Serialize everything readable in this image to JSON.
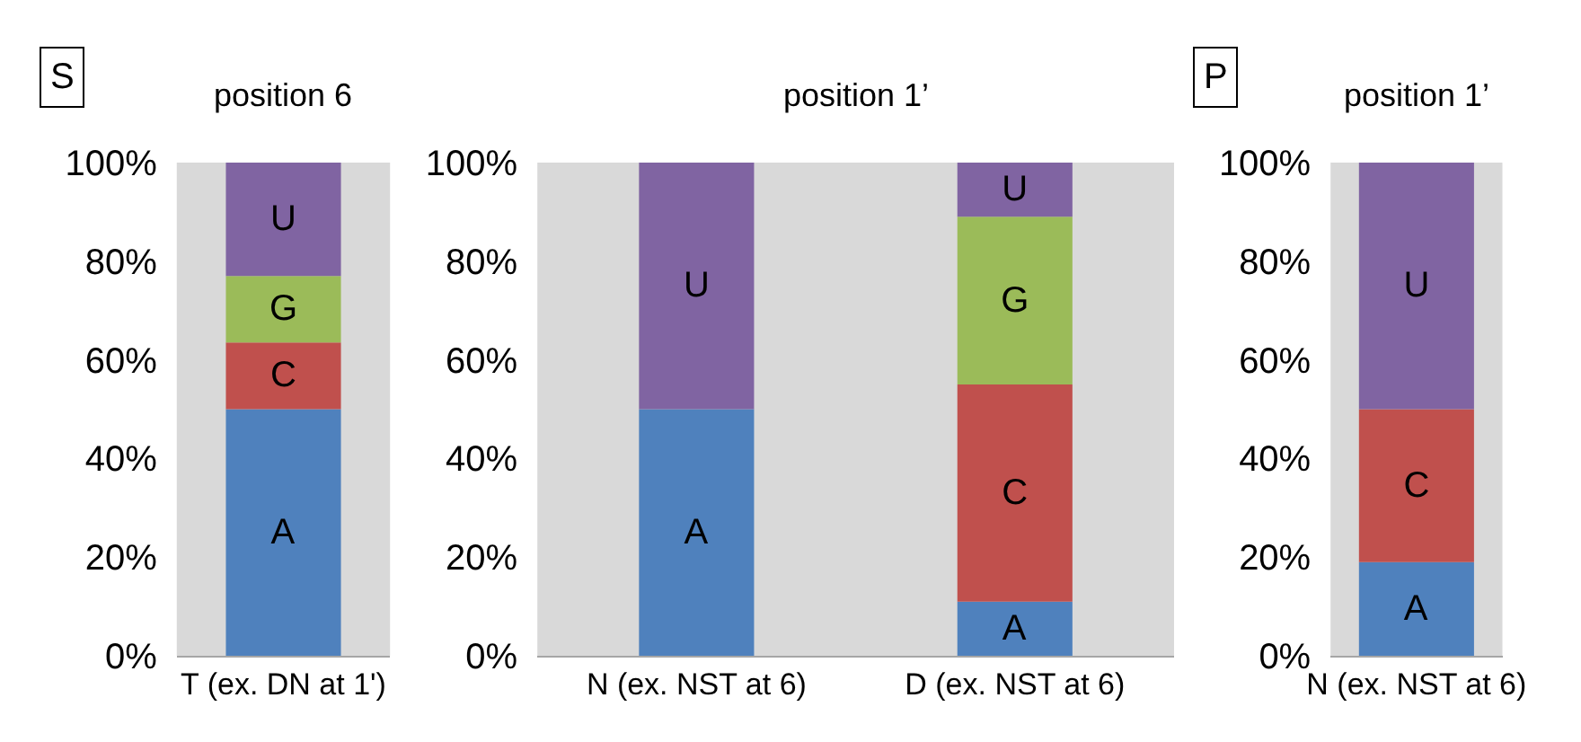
{
  "chart_data": [
    {
      "type": "bar",
      "stacked": true,
      "title": "position 6",
      "annotations": [
        "S"
      ],
      "categories": [
        "T (ex. DN at 1')"
      ],
      "ylim": [
        0,
        100
      ],
      "yticks": [
        {
          "value": 0,
          "label": "0%"
        },
        {
          "value": 20,
          "label": "20%"
        },
        {
          "value": 40,
          "label": "40%"
        },
        {
          "value": 60,
          "label": "60%"
        },
        {
          "value": 80,
          "label": "80%"
        },
        {
          "value": 100,
          "label": "100%"
        }
      ],
      "grid": false,
      "legend": false,
      "series": [
        {
          "name": "A",
          "color": "#4f81bd",
          "values": [
            50
          ]
        },
        {
          "name": "C",
          "color": "#c0504d",
          "values": [
            13.5
          ]
        },
        {
          "name": "G",
          "color": "#9bbb59",
          "values": [
            13.5
          ]
        },
        {
          "name": "U",
          "color": "#8064a2",
          "values": [
            23
          ]
        }
      ]
    },
    {
      "type": "bar",
      "stacked": true,
      "title": "position 1’",
      "categories": [
        "N (ex. NST at 6)",
        "D (ex. NST at 6)"
      ],
      "ylim": [
        0,
        100
      ],
      "yticks": [
        {
          "value": 0,
          "label": "0%"
        },
        {
          "value": 20,
          "label": "20%"
        },
        {
          "value": 40,
          "label": "40%"
        },
        {
          "value": 60,
          "label": "60%"
        },
        {
          "value": 80,
          "label": "80%"
        },
        {
          "value": 100,
          "label": "100%"
        }
      ],
      "grid": false,
      "legend": false,
      "series": [
        {
          "name": "A",
          "color": "#4f81bd",
          "values": [
            50,
            11
          ]
        },
        {
          "name": "C",
          "color": "#c0504d",
          "values": [
            null,
            44
          ]
        },
        {
          "name": "G",
          "color": "#9bbb59",
          "values": [
            null,
            34
          ]
        },
        {
          "name": "U",
          "color": "#8064a2",
          "values": [
            50,
            11
          ]
        }
      ]
    },
    {
      "type": "bar",
      "stacked": true,
      "title": "position 1’",
      "annotations": [
        "P"
      ],
      "categories": [
        "N (ex. NST at 6)"
      ],
      "ylim": [
        0,
        100
      ],
      "yticks": [
        {
          "value": 0,
          "label": "0%"
        },
        {
          "value": 20,
          "label": "20%"
        },
        {
          "value": 40,
          "label": "40%"
        },
        {
          "value": 60,
          "label": "60%"
        },
        {
          "value": 80,
          "label": "80%"
        },
        {
          "value": 100,
          "label": "100%"
        }
      ],
      "grid": false,
      "legend": false,
      "series": [
        {
          "name": "A",
          "color": "#4f81bd",
          "values": [
            19
          ]
        },
        {
          "name": "C",
          "color": "#c0504d",
          "values": [
            31
          ]
        },
        {
          "name": "U",
          "color": "#8064a2",
          "values": [
            50
          ]
        }
      ]
    }
  ]
}
